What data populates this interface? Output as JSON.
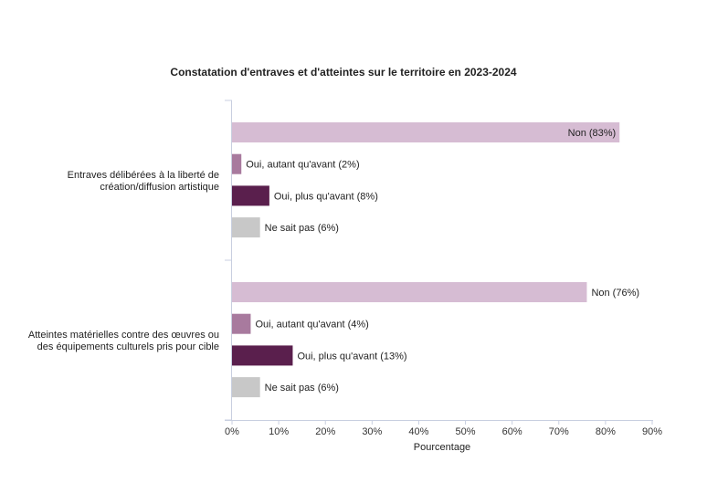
{
  "chart_data": {
    "type": "bar",
    "orientation": "horizontal",
    "title": "Constatation d'entraves et d'atteintes sur le territoire en 2023-2024",
    "xlabel": "Pourcentage",
    "ylabel": "",
    "xlim": [
      0,
      90
    ],
    "x_ticks": [
      "0%",
      "10%",
      "20%",
      "30%",
      "40%",
      "50%",
      "60%",
      "70%",
      "80%",
      "90%"
    ],
    "grid": false,
    "categories": [
      "Entraves délibérées à la liberté de création/diffusion artistique",
      "Atteintes matérielles contre des œuvres ou des équipements culturels pris pour cible"
    ],
    "category_lines": [
      [
        "Entraves délibérées à la liberté de",
        "création/diffusion artistique"
      ],
      [
        "Atteintes matérielles contre des œuvres ou",
        "des équipements culturels pris pour cible"
      ]
    ],
    "series": [
      {
        "name": "Non",
        "color": "#d6bcd3",
        "values": [
          83,
          76
        ],
        "labels": [
          "Non (83%)",
          "Non (76%)"
        ]
      },
      {
        "name": "Oui, autant qu'avant",
        "color": "#a87a9e",
        "values": [
          2,
          4
        ],
        "labels": [
          "Oui, autant qu'avant (2%)",
          "Oui, autant qu'avant (4%)"
        ]
      },
      {
        "name": "Oui, plus qu'avant",
        "color": "#5a1f4d",
        "values": [
          8,
          13
        ],
        "labels": [
          "Oui, plus qu'avant (8%)",
          "Oui, plus qu'avant (13%)"
        ]
      },
      {
        "name": "Ne sait pas",
        "color": "#c8c8c8",
        "values": [
          6,
          6
        ],
        "labels": [
          "Ne sait pas (6%)",
          "Ne sait pas (6%)"
        ]
      }
    ]
  }
}
